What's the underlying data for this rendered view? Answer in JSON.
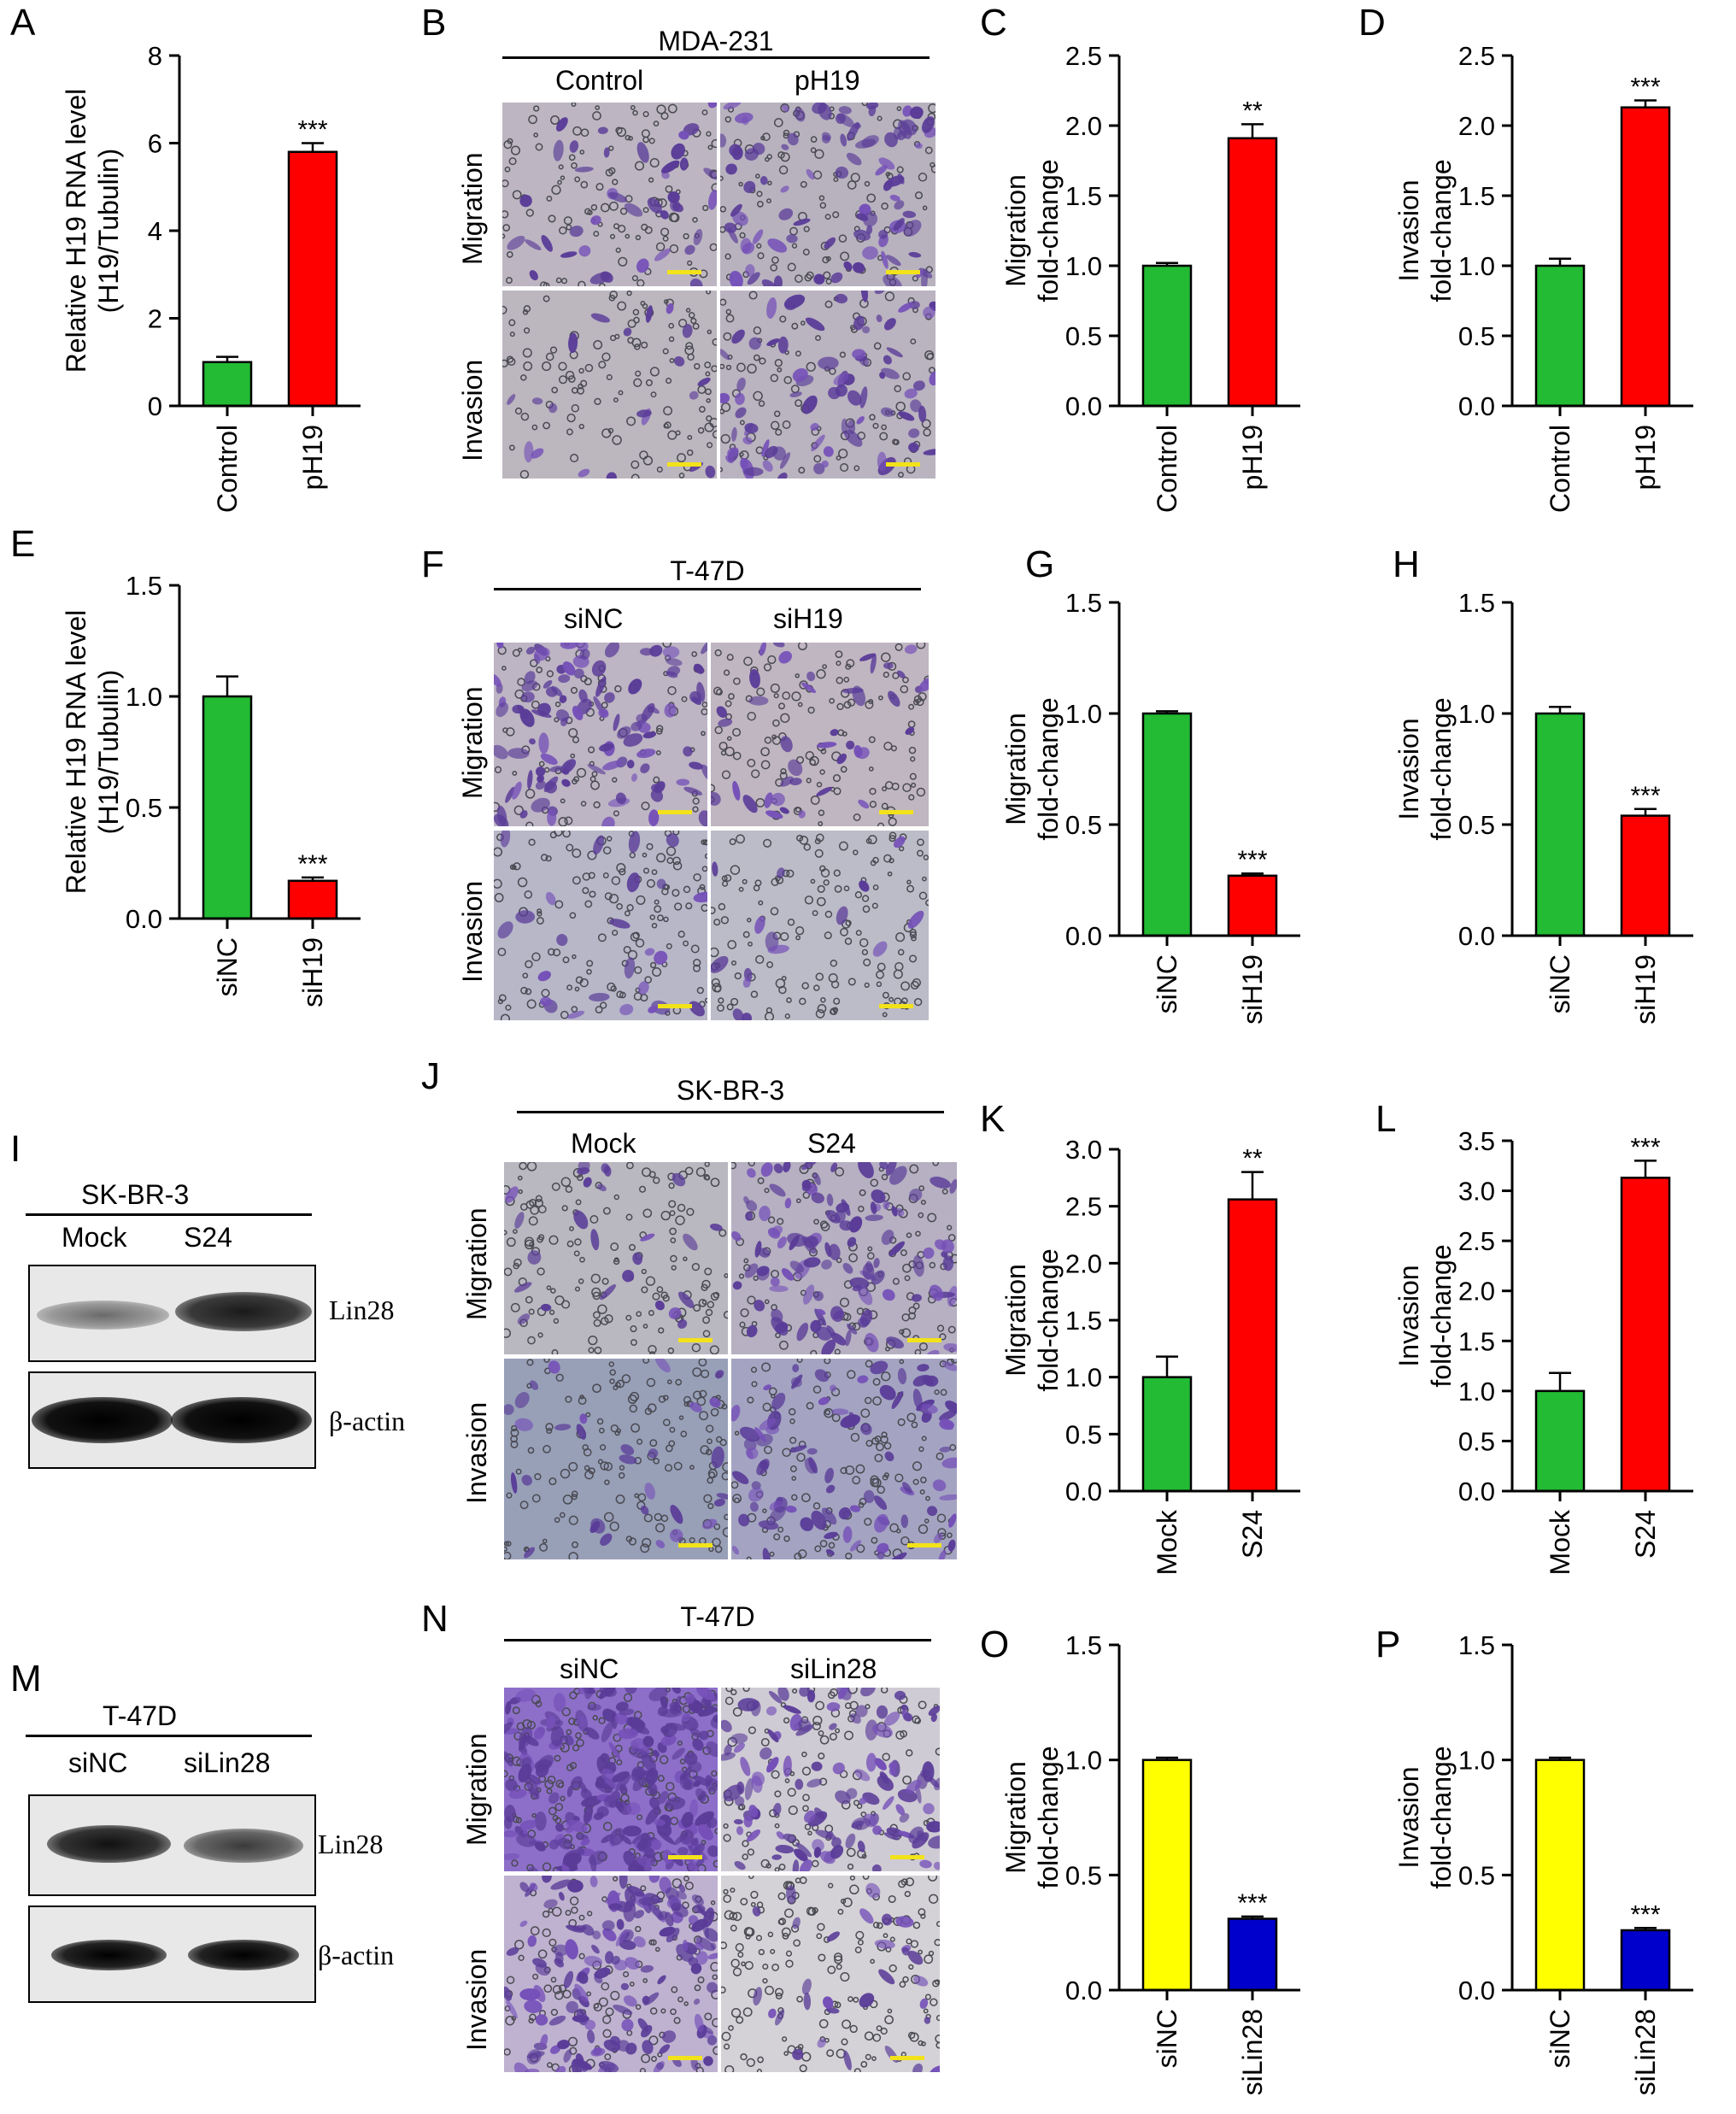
{
  "panel_letters": [
    "A",
    "B",
    "C",
    "D",
    "E",
    "F",
    "G",
    "H",
    "I",
    "J",
    "K",
    "L",
    "M",
    "N",
    "O",
    "P"
  ],
  "bar_colors": {
    "green": "#22bb33",
    "red": "#ff0000",
    "yellow": "#ffff00",
    "blue": "#0000cc"
  },
  "microscopy": [
    {
      "id": "B",
      "title": "MDA-231",
      "columns": [
        "Control",
        "pH19"
      ],
      "rows": [
        "Migration",
        "Invasion"
      ]
    },
    {
      "id": "F",
      "title": "T-47D",
      "columns": [
        "siNC",
        "siH19"
      ],
      "rows": [
        "Migration",
        "Invasion"
      ]
    },
    {
      "id": "J",
      "title": "SK-BR-3",
      "columns": [
        "Mock",
        "S24"
      ],
      "rows": [
        "Migration",
        "Invasion"
      ]
    },
    {
      "id": "N",
      "title": "T-47D",
      "columns": [
        "siNC",
        "siLin28"
      ],
      "rows": [
        "Migration",
        "Invasion"
      ]
    }
  ],
  "blots": [
    {
      "id": "I",
      "title": "SK-BR-3",
      "columns": [
        "Mock",
        "S24"
      ],
      "bands": [
        "Lin28",
        "β-actin"
      ]
    },
    {
      "id": "M",
      "title": "T-47D",
      "columns": [
        "siNC",
        "siLin28"
      ],
      "bands": [
        "Lin28",
        "β-actin"
      ]
    }
  ],
  "chart_data": [
    {
      "id": "A",
      "type": "bar",
      "categories": [
        "Control",
        "pH19"
      ],
      "values": [
        1.0,
        5.8
      ],
      "errors": [
        0.12,
        0.2
      ],
      "significance": [
        "",
        "***"
      ],
      "colors": [
        "green",
        "red"
      ],
      "ylabel": [
        "Relative H19 RNA level",
        "(H19/Tubulin)"
      ],
      "ylim": [
        0,
        8
      ],
      "yticks": [
        "0",
        "2",
        "4",
        "6",
        "8"
      ]
    },
    {
      "id": "C",
      "type": "bar",
      "categories": [
        "Control",
        "pH19"
      ],
      "values": [
        1.0,
        1.91
      ],
      "errors": [
        0.02,
        0.1
      ],
      "significance": [
        "",
        "**"
      ],
      "colors": [
        "green",
        "red"
      ],
      "ylabel": [
        "Migration",
        "fold-change"
      ],
      "ylim": [
        0,
        2.5
      ],
      "yticks": [
        "0.0",
        "0.5",
        "1.0",
        "1.5",
        "2.0",
        "2.5"
      ]
    },
    {
      "id": "D",
      "type": "bar",
      "categories": [
        "Control",
        "pH19"
      ],
      "values": [
        1.0,
        2.13
      ],
      "errors": [
        0.05,
        0.05
      ],
      "significance": [
        "",
        "***"
      ],
      "colors": [
        "green",
        "red"
      ],
      "ylabel": [
        "Invasion",
        "fold-change"
      ],
      "ylim": [
        0,
        2.5
      ],
      "yticks": [
        "0.0",
        "0.5",
        "1.0",
        "1.5",
        "2.0",
        "2.5"
      ]
    },
    {
      "id": "E",
      "type": "bar",
      "categories": [
        "siNC",
        "siH19"
      ],
      "values": [
        1.0,
        0.17
      ],
      "errors": [
        0.09,
        0.015
      ],
      "significance": [
        "",
        "***"
      ],
      "colors": [
        "green",
        "red"
      ],
      "ylabel": [
        "Relative H19 RNA level",
        "(H19/Tubulin)"
      ],
      "ylim": [
        0,
        1.5
      ],
      "yticks": [
        "0.0",
        "0.5",
        "1.0",
        "1.5"
      ]
    },
    {
      "id": "G",
      "type": "bar",
      "categories": [
        "siNC",
        "siH19"
      ],
      "values": [
        1.0,
        0.27
      ],
      "errors": [
        0.01,
        0.01
      ],
      "significance": [
        "",
        "***"
      ],
      "colors": [
        "green",
        "red"
      ],
      "ylabel": [
        "Migration",
        "fold-change"
      ],
      "ylim": [
        0,
        1.5
      ],
      "yticks": [
        "0.0",
        "0.5",
        "1.0",
        "1.5"
      ]
    },
    {
      "id": "H",
      "type": "bar",
      "categories": [
        "siNC",
        "siH19"
      ],
      "values": [
        1.0,
        0.54
      ],
      "errors": [
        0.03,
        0.03
      ],
      "significance": [
        "",
        "***"
      ],
      "colors": [
        "green",
        "red"
      ],
      "ylabel": [
        "Invasion",
        "fold-change"
      ],
      "ylim": [
        0,
        1.5
      ],
      "yticks": [
        "0.0",
        "0.5",
        "1.0",
        "1.5"
      ]
    },
    {
      "id": "K",
      "type": "bar",
      "categories": [
        "Mock",
        "S24"
      ],
      "values": [
        1.0,
        2.56
      ],
      "errors": [
        0.18,
        0.24
      ],
      "significance": [
        "",
        "**"
      ],
      "colors": [
        "green",
        "red"
      ],
      "ylabel": [
        "Migration",
        "fold-change"
      ],
      "ylim": [
        0,
        3.0
      ],
      "yticks": [
        "0.0",
        "0.5",
        "1.0",
        "1.5",
        "2.0",
        "2.5",
        "3.0"
      ]
    },
    {
      "id": "L",
      "type": "bar",
      "categories": [
        "Mock",
        "S24"
      ],
      "values": [
        1.0,
        3.13
      ],
      "errors": [
        0.18,
        0.17
      ],
      "significance": [
        "",
        "***"
      ],
      "colors": [
        "green",
        "red"
      ],
      "ylabel": [
        "Invasion",
        "fold-change"
      ],
      "ylim": [
        0,
        3.5
      ],
      "yticks": [
        "0.0",
        "0.5",
        "1.0",
        "1.5",
        "2.0",
        "2.5",
        "3.0",
        "3.5"
      ]
    },
    {
      "id": "O",
      "type": "bar",
      "categories": [
        "siNC",
        "siLin28"
      ],
      "values": [
        1.0,
        0.31
      ],
      "errors": [
        0.01,
        0.01
      ],
      "significance": [
        "",
        "***"
      ],
      "colors": [
        "yellow",
        "blue"
      ],
      "ylabel": [
        "Migration",
        "fold-change"
      ],
      "ylim": [
        0,
        1.5
      ],
      "yticks": [
        "0.0",
        "0.5",
        "1.0",
        "1.5"
      ]
    },
    {
      "id": "P",
      "type": "bar",
      "categories": [
        "siNC",
        "siLin28"
      ],
      "values": [
        1.0,
        0.26
      ],
      "errors": [
        0.01,
        0.01
      ],
      "significance": [
        "",
        "***"
      ],
      "colors": [
        "yellow",
        "blue"
      ],
      "ylabel": [
        "Invasion",
        "fold-change"
      ],
      "ylim": [
        0,
        1.5
      ],
      "yticks": [
        "0.0",
        "0.5",
        "1.0",
        "1.5"
      ]
    }
  ]
}
